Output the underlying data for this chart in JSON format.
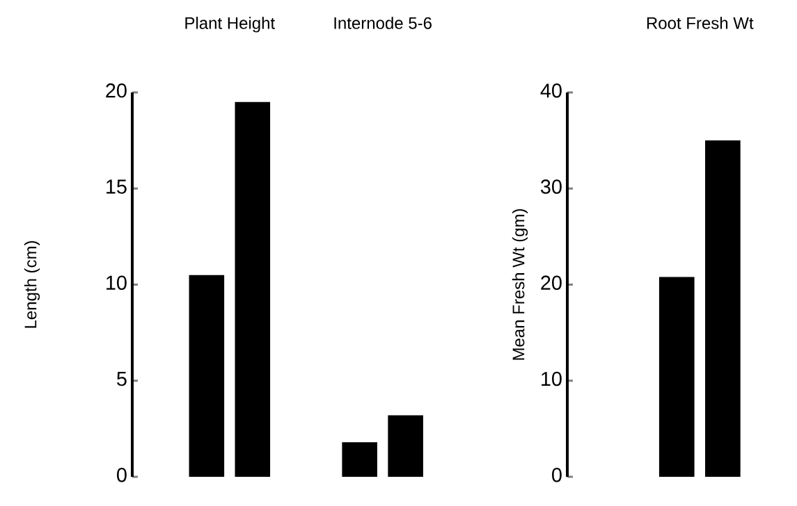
{
  "chart_data": [
    {
      "type": "bar",
      "categories": [
        "Plant Height",
        "Internode 5-6"
      ],
      "ylabel": "Length (cm)",
      "ylim": [
        0,
        20
      ],
      "yticks": [
        0,
        5,
        10,
        15,
        20
      ],
      "series": [
        {
          "color": "#000000",
          "values": [
            10.5,
            1.8
          ]
        },
        {
          "color": "#000000",
          "values": [
            19.5,
            3.2
          ]
        }
      ],
      "grid": false
    },
    {
      "type": "bar",
      "categories": [
        "Root Fresh Wt"
      ],
      "ylabel": "Mean Fresh Wt (gm)",
      "ylim": [
        0,
        40
      ],
      "yticks": [
        0,
        10,
        20,
        30,
        40
      ],
      "series": [
        {
          "color": "#000000",
          "values": [
            20.8
          ]
        },
        {
          "color": "#000000",
          "values": [
            35
          ]
        }
      ],
      "grid": false
    }
  ]
}
